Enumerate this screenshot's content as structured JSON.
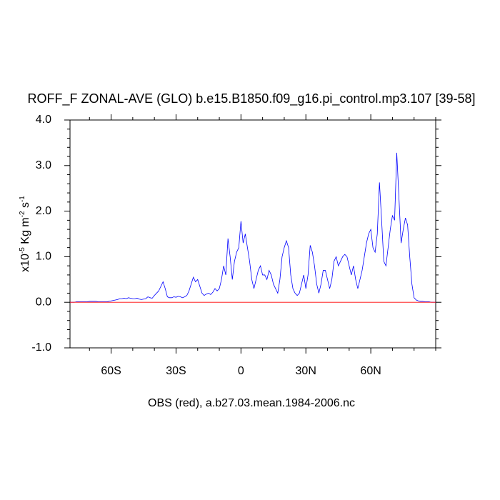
{
  "chart_data": {
    "type": "line",
    "title": "ROFF_F ZONAL-AVE (GLO) b.e15.B1850.f09_g16.pi_control.mp3.107 [39-58]",
    "xlabel": "OBS (red), a.b27.03.mean.1984-2006.nc",
    "ylabel": [
      "x10",
      "-5",
      " Kg m",
      "-2",
      " s",
      "-1"
    ],
    "xlim": [
      -79,
      90
    ],
    "ylim": [
      -1,
      4
    ],
    "xticks": [
      {
        "value": -60,
        "label": "60S"
      },
      {
        "value": -30,
        "label": "30S"
      },
      0,
      {
        "value": 30,
        "label": "30N"
      },
      {
        "value": 60,
        "label": "60N"
      }
    ],
    "xminorticks": [
      -70,
      -50,
      -40,
      -20,
      -10,
      10,
      20,
      40,
      50,
      70,
      80,
      90
    ],
    "yticks": [
      {
        "value": -1,
        "label": "-1.0"
      },
      {
        "value": 0,
        "label": "0.0"
      },
      {
        "value": 1,
        "label": "1.0"
      },
      {
        "value": 2,
        "label": "2.0"
      },
      {
        "value": 3,
        "label": "3.0"
      },
      {
        "value": 4,
        "label": "4.0"
      }
    ],
    "yminorticks": [
      -0.8,
      -0.6,
      -0.4,
      -0.2,
      0.2,
      0.4,
      0.6,
      0.8,
      1.2,
      1.4,
      1.6,
      1.8,
      2.2,
      2.4,
      2.6,
      2.8,
      3.2,
      3.4,
      3.6,
      3.8
    ],
    "x": [
      -79,
      -78,
      -77,
      -76,
      -75,
      -74,
      -73,
      -72,
      -71,
      -70,
      -69,
      -68,
      -67,
      -66,
      -65,
      -64,
      -63,
      -62,
      -61,
      -60,
      -59,
      -58,
      -57,
      -56,
      -55,
      -54,
      -53,
      -52,
      -51,
      -50,
      -49,
      -48,
      -47,
      -46,
      -45,
      -44,
      -43,
      -42,
      -41,
      -40,
      -39,
      -38,
      -37,
      -36,
      -35,
      -34,
      -33,
      -32,
      -31,
      -30,
      -29,
      -28,
      -27,
      -26,
      -25,
      -24,
      -23,
      -22,
      -21,
      -20,
      -19,
      -18,
      -17,
      -16,
      -15,
      -14,
      -13,
      -12,
      -11,
      -10,
      -9,
      -8,
      -7,
      -6,
      -5,
      -4,
      -3,
      -2,
      -1,
      0,
      1,
      2,
      3,
      4,
      5,
      6,
      7,
      8,
      9,
      10,
      11,
      12,
      13,
      14,
      15,
      16,
      17,
      18,
      19,
      20,
      21,
      22,
      23,
      24,
      25,
      26,
      27,
      28,
      29,
      30,
      31,
      32,
      33,
      34,
      35,
      36,
      37,
      38,
      39,
      40,
      41,
      42,
      43,
      44,
      45,
      46,
      47,
      48,
      49,
      50,
      51,
      52,
      53,
      54,
      55,
      56,
      57,
      58,
      59,
      60,
      61,
      62,
      63,
      64,
      65,
      66,
      67,
      68,
      69,
      70,
      71,
      72,
      73,
      74,
      75,
      76,
      77,
      78,
      79,
      80,
      81,
      82,
      83,
      84,
      85,
      86,
      87,
      88,
      89,
      90
    ],
    "series": [
      {
        "color": "#0000ff",
        "values": [
          0,
          0,
          0,
          0.01,
          0.01,
          0.01,
          0.01,
          0.01,
          0.01,
          0.02,
          0.02,
          0.02,
          0.02,
          0.01,
          0.01,
          0.01,
          0.01,
          0.01,
          0.02,
          0.03,
          0.04,
          0.05,
          0.06,
          0.08,
          0.08,
          0.09,
          0.08,
          0.1,
          0.09,
          0.08,
          0.08,
          0.09,
          0.07,
          0.06,
          0.07,
          0.08,
          0.12,
          0.1,
          0.09,
          0.15,
          0.2,
          0.25,
          0.35,
          0.45,
          0.3,
          0.12,
          0.1,
          0.1,
          0.12,
          0.11,
          0.13,
          0.12,
          0.1,
          0.12,
          0.15,
          0.25,
          0.4,
          0.55,
          0.45,
          0.5,
          0.35,
          0.2,
          0.15,
          0.18,
          0.2,
          0.17,
          0.22,
          0.3,
          0.25,
          0.3,
          0.5,
          0.8,
          0.6,
          1.4,
          1.0,
          0.5,
          0.9,
          1.1,
          1.2,
          1.78,
          1.3,
          1.5,
          1.2,
          0.9,
          0.5,
          0.3,
          0.5,
          0.7,
          0.8,
          0.6,
          0.6,
          0.5,
          0.7,
          0.6,
          0.4,
          0.3,
          0.2,
          0.5,
          1.0,
          1.2,
          1.35,
          1.2,
          0.6,
          0.3,
          0.2,
          0.15,
          0.2,
          0.4,
          0.6,
          0.3,
          0.6,
          1.25,
          1.1,
          0.8,
          0.4,
          0.2,
          0.4,
          0.7,
          0.7,
          0.5,
          0.3,
          0.5,
          0.9,
          1.0,
          0.8,
          0.9,
          1.0,
          1.05,
          1.0,
          0.8,
          0.6,
          0.8,
          0.5,
          0.3,
          0.5,
          0.7,
          1.0,
          1.3,
          1.5,
          1.6,
          1.2,
          1.1,
          1.5,
          2.63,
          1.8,
          0.9,
          0.8,
          1.2,
          1.6,
          1.9,
          1.8,
          3.28,
          2.3,
          1.3,
          1.6,
          1.85,
          1.7,
          1.0,
          0.4,
          0.1,
          0.05,
          0.03,
          0.02,
          0.02,
          0.01,
          0.01,
          0.01,
          0,
          0,
          0
        ]
      },
      {
        "color": "#ff0000",
        "x": [
          -79,
          90
        ],
        "values": [
          0,
          0
        ]
      }
    ]
  }
}
